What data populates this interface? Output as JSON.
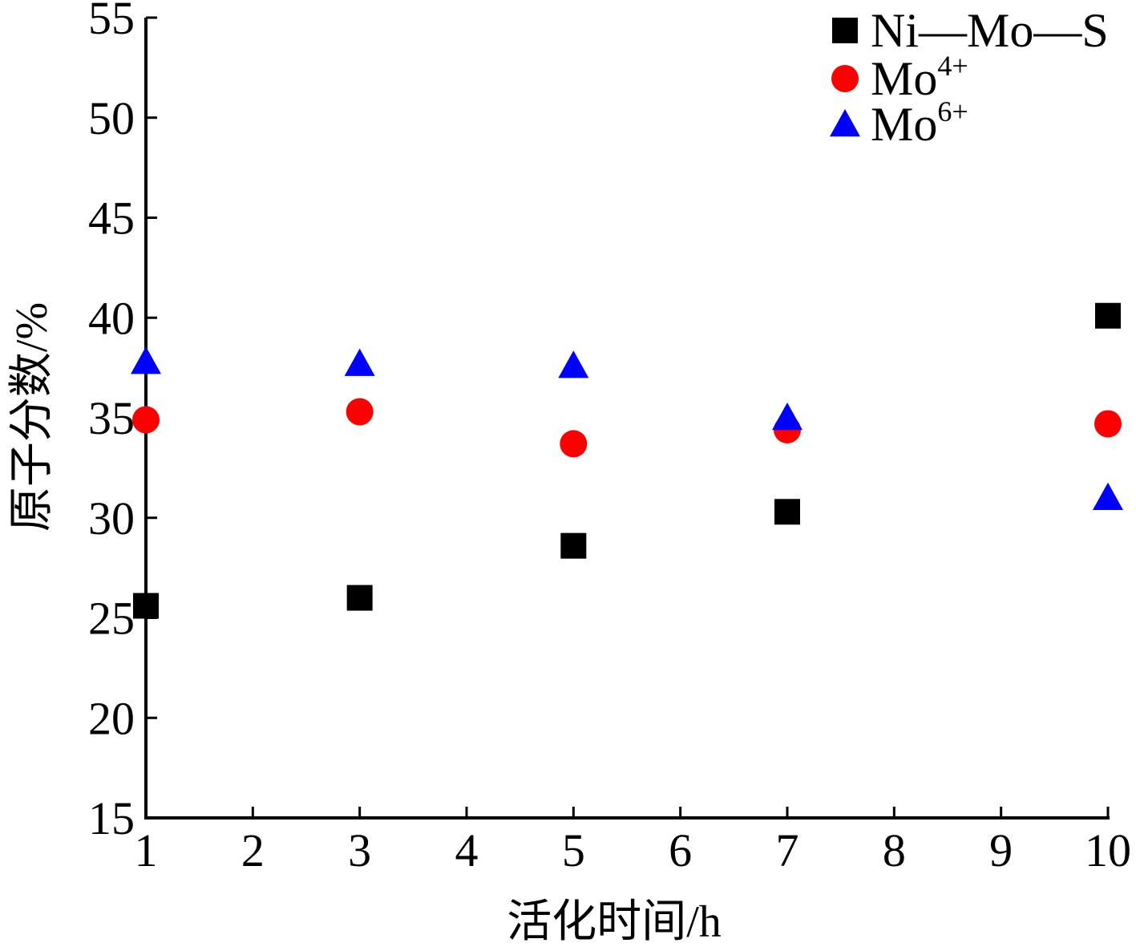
{
  "chart_data": {
    "type": "scatter",
    "title": "",
    "xlabel": "活化时间/h",
    "ylabel": "原子分数/%",
    "x_ticks": [
      "1",
      "2",
      "3",
      "4",
      "5",
      "6",
      "7",
      "8",
      "9",
      "10"
    ],
    "y_ticks": [
      15,
      20,
      25,
      30,
      35,
      40,
      45,
      50,
      55
    ],
    "ylim": [
      15,
      55
    ],
    "x_categories": [
      "1",
      "3",
      "5",
      "7",
      "10"
    ],
    "grid": false,
    "legend_position": "top-right",
    "series": [
      {
        "name": "Ni—Mo—S",
        "legend_base": "Ni—Mo—S",
        "legend_sup": "",
        "marker": "square",
        "color": "#000000",
        "x": [
          "1",
          "3",
          "5",
          "7",
          "10"
        ],
        "values": [
          25.6,
          26.0,
          28.6,
          30.3,
          40.1
        ]
      },
      {
        "name": "Mo4+",
        "legend_base": "Mo",
        "legend_sup": "4+",
        "marker": "circle",
        "color": "#ff0000",
        "x": [
          "1",
          "3",
          "5",
          "7",
          "10"
        ],
        "values": [
          34.9,
          35.3,
          33.7,
          34.4,
          34.7
        ]
      },
      {
        "name": "Mo6+",
        "legend_base": "Mo",
        "legend_sup": "6+",
        "marker": "triangle",
        "color": "#0000ff",
        "x": [
          "1",
          "3",
          "5",
          "7",
          "10"
        ],
        "values": [
          37.8,
          37.7,
          37.6,
          35.0,
          31.0
        ]
      }
    ]
  }
}
